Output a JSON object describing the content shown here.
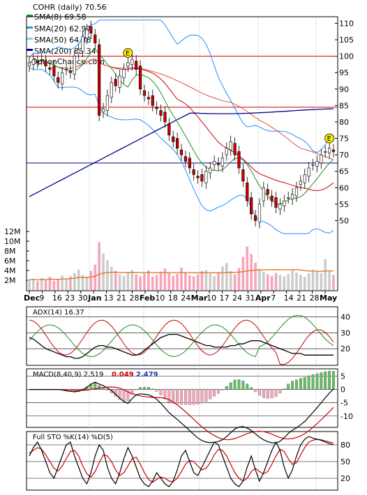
{
  "chart_data": [
    {
      "type": "candlestick",
      "panel": "price",
      "title": "COHR (daily) 70.56",
      "watermark": "OptionChance.com",
      "legend": [
        {
          "label": "SMA(8) 69.58",
          "color": "#228B22"
        },
        {
          "label": "SMA(20) 62.97",
          "color": "#1E90FF"
        },
        {
          "label": "SMA(50) 64.38",
          "color": "#87CEEB"
        },
        {
          "label": "SMA(200) 83.34",
          "color": "#00008B"
        }
      ],
      "legend_position": "top-left",
      "y_ticks": [
        "110",
        "105",
        "100",
        "95",
        "90",
        "85",
        "80",
        "75",
        "70",
        "65",
        "60",
        "55",
        "50"
      ],
      "ylim": [
        45,
        112
      ],
      "reference_lines": [
        {
          "y": 100,
          "color": "#cc0000"
        },
        {
          "y": 84.5,
          "color": "#cc0000"
        },
        {
          "y": 67.5,
          "color": "#00008B"
        }
      ],
      "earnings_markers": [
        {
          "label": "E",
          "date": "Feb 1"
        },
        {
          "label": "E",
          "date": "May 2"
        }
      ],
      "close": [
        98,
        99,
        98,
        99,
        97,
        96,
        94,
        92,
        95,
        96,
        95,
        100,
        102,
        106,
        108,
        107,
        104,
        82,
        84,
        88,
        92,
        91,
        94,
        96,
        98,
        99,
        96,
        90,
        88,
        87,
        85,
        84,
        82,
        80,
        76,
        74,
        72,
        70,
        68,
        66,
        64,
        63,
        62,
        65,
        66,
        68,
        67,
        69,
        72,
        74,
        70,
        66,
        62,
        56,
        52,
        50,
        55,
        60,
        58,
        56,
        54,
        55,
        56,
        57,
        58,
        60,
        62,
        64,
        66,
        67,
        68,
        70,
        71,
        72,
        71
      ]
    },
    {
      "type": "bar",
      "panel": "volume",
      "y_ticks": [
        "12M",
        "10M",
        "8M",
        "6M",
        "4M",
        "2M"
      ],
      "ylim": [
        0,
        13
      ],
      "values": [
        2.1,
        2.3,
        1.8,
        2.5,
        2.0,
        2.7,
        1.9,
        2.2,
        3.0,
        2.4,
        2.8,
        3.5,
        4.2,
        3.1,
        2.6,
        3.9,
        5.2,
        9.8,
        7.5,
        6.1,
        4.8,
        3.9,
        3.3,
        2.9,
        3.6,
        4.1,
        3.2,
        2.8,
        3.4,
        4.0,
        2.7,
        3.1,
        3.8,
        4.4,
        3.6,
        2.9,
        3.3,
        4.6,
        3.5,
        3.0,
        2.8,
        3.2,
        3.9,
        4.1,
        3.4,
        2.9,
        3.6,
        4.8,
        5.5,
        3.9,
        3.2,
        4.5,
        6.8,
        8.9,
        7.4,
        5.6,
        4.3,
        3.8,
        3.2,
        2.9,
        3.5,
        3.1,
        2.8,
        3.3,
        4.0,
        3.6,
        3.1,
        2.7,
        3.4,
        4.2,
        3.8,
        3.5,
        6.3,
        3.9,
        3.1
      ]
    },
    {
      "type": "line",
      "panel": "ADX",
      "label": "ADX(14) 16.37",
      "y_ticks": [
        "40",
        "30",
        "20"
      ],
      "ylim": [
        10,
        45
      ],
      "series": [
        {
          "name": "ADX(14) 16.37",
          "color": "#000000",
          "values": [
            27,
            26,
            24,
            22,
            20,
            19,
            18,
            17,
            16,
            15,
            15,
            14,
            14,
            15,
            17,
            19,
            21,
            22,
            22,
            21,
            21,
            20,
            19,
            18,
            17,
            16,
            16,
            17,
            19,
            21,
            23,
            25,
            27,
            28,
            29,
            29,
            29,
            28,
            27,
            26,
            25,
            24,
            23,
            22,
            22,
            21,
            21,
            21,
            21,
            22,
            22,
            23,
            23,
            24,
            25,
            25,
            25,
            24,
            23,
            22,
            21,
            20,
            19,
            18,
            17,
            17,
            17,
            16,
            16,
            16,
            16,
            16,
            16,
            16,
            16
          ]
        }
      ]
    },
    {
      "type": "line",
      "panel": "MACD",
      "label": "MACD(8,40,9) 2.519",
      "values_text": [
        "0.049",
        "2.479"
      ],
      "y_ticks": [
        "5",
        "0",
        "-5",
        "-10"
      ],
      "ylim": [
        -14,
        7
      ]
    },
    {
      "type": "line",
      "panel": "stochastic",
      "label": "Full STO %K(14) %D(5)",
      "y_ticks": [
        "80",
        "50",
        "20"
      ],
      "ylim": [
        0,
        100
      ],
      "series": [
        {
          "name": "%K",
          "color": "#000000",
          "values": [
            60,
            75,
            85,
            70,
            50,
            30,
            20,
            40,
            60,
            80,
            85,
            60,
            40,
            20,
            10,
            30,
            60,
            80,
            70,
            40,
            20,
            10,
            30,
            55,
            75,
            60,
            40,
            20,
            10,
            5,
            15,
            30,
            20,
            10,
            5,
            15,
            35,
            60,
            70,
            50,
            30,
            25,
            40,
            55,
            70,
            85,
            80,
            60,
            40,
            20,
            10,
            5,
            15,
            40,
            60,
            35,
            15,
            30,
            50,
            70,
            85,
            70,
            40,
            20,
            35,
            60,
            80,
            90,
            95,
            92,
            90,
            88,
            85,
            82,
            80
          ]
        },
        {
          "name": "%D",
          "color": "#cc0000",
          "values": [
            65,
            70,
            75,
            72,
            62,
            50,
            38,
            33,
            42,
            55,
            68,
            70,
            60,
            42,
            28,
            22,
            32,
            48,
            62,
            60,
            50,
            35,
            25,
            30,
            42,
            55,
            58,
            45,
            30,
            18,
            13,
            18,
            22,
            20,
            15,
            14,
            20,
            32,
            45,
            52,
            50,
            42,
            35,
            38,
            48,
            62,
            72,
            70,
            60,
            45,
            30,
            20,
            15,
            20,
            32,
            38,
            32,
            28,
            32,
            45,
            60,
            72,
            68,
            55,
            45,
            48,
            62,
            75,
            85,
            88,
            90,
            89,
            87,
            85,
            83
          ]
        }
      ]
    }
  ],
  "x_ticks": [
    "Dec",
    "9",
    "16",
    "23",
    "30",
    "Jan",
    "13",
    "21",
    "28",
    "Feb",
    "10",
    "18",
    "24",
    "Mar",
    "10",
    "17",
    "24",
    "31",
    "Apr",
    "7",
    "14",
    "21",
    "28",
    "May"
  ],
  "colors": {
    "up_candle": "#ffffff",
    "down_candle": "#cc0000",
    "volume_up": "#cccccc",
    "volume_down": "#f4a6b8",
    "volume_avg": "#e07020",
    "macd_hist_pos": "#66bb66",
    "macd_hist_neg": "#f4a6b8",
    "bollinger": "#1E90FF"
  }
}
